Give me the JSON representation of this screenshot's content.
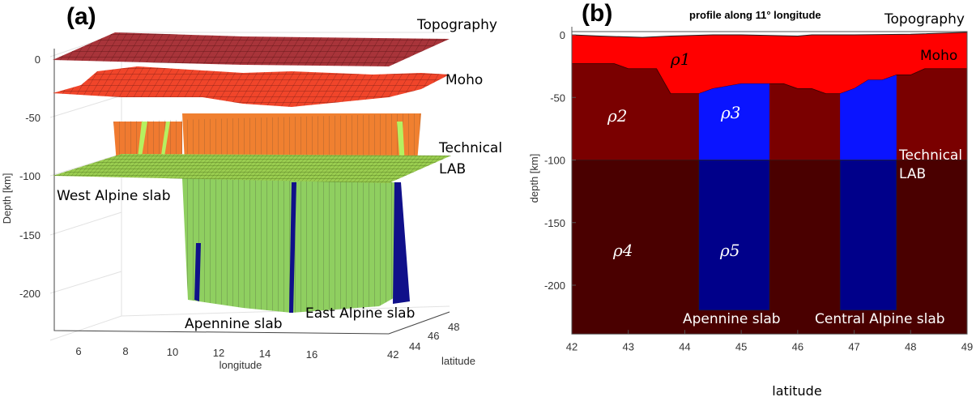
{
  "panel_a": {
    "label": "(a)",
    "layer_labels": {
      "topography": "Topography",
      "moho": "Moho",
      "lab_line1": "Technical",
      "lab_line2": "LAB",
      "west_slab": "West Alpine slab",
      "apennine_slab": "Apennine slab",
      "east_slab": "East Alpine slab"
    }
  },
  "panel_b": {
    "label": "(b)",
    "title": "profile along 11° longitude",
    "layer_labels": {
      "topography": "Topography",
      "moho": "Moho",
      "lab_line1": "Technical",
      "lab_line2": "LAB",
      "apennine_slab": "Apennine slab",
      "central_slab": "Central Alpine slab"
    },
    "density_labels": [
      "ρ1",
      "ρ2",
      "ρ3",
      "ρ4",
      "ρ5"
    ]
  },
  "chart_data": [
    {
      "type": "3d-surface",
      "zlabel": "Depth [km]",
      "xlabel": "longitude",
      "ylabel": "latitude",
      "z_ticks": [
        "0",
        "-50",
        "-100",
        "-150",
        "-200"
      ],
      "x_ticks": [
        "6",
        "8",
        "10",
        "12",
        "14",
        "16"
      ],
      "y_ticks": [
        "42",
        "44",
        "46",
        "48"
      ],
      "surfaces": [
        "Topography",
        "Moho",
        "Technical LAB"
      ],
      "colors": {
        "topography": "#a8343a",
        "moho": "#f04020",
        "crust_walls": "#f08030",
        "lab": "#9acd50",
        "slab_walls": "#8fcf60",
        "slab_blue": "#10108a"
      }
    },
    {
      "type": "area",
      "title": "profile along 11° longitude",
      "xlabel": "latitude",
      "ylabel": "depth [km]",
      "xlim": [
        42,
        49
      ],
      "ylim": [
        -239,
        5
      ],
      "x_ticks": [
        "42",
        "43",
        "44",
        "45",
        "46",
        "47",
        "48",
        "49"
      ],
      "y_ticks": [
        "0",
        "-50",
        "-100",
        "-150",
        "-200"
      ],
      "topography": {
        "lat": [
          42,
          42.5,
          43.25,
          43.75,
          44.5,
          45,
          46,
          46.25,
          47,
          48,
          49
        ],
        "depth": [
          0,
          -1,
          -2,
          -1,
          0,
          0,
          -1,
          0,
          0,
          0.5,
          2
        ]
      },
      "moho": {
        "lat": [
          42,
          42.75,
          43,
          43.5,
          43.75,
          44.25,
          44.5,
          45,
          45.75,
          46,
          46.25,
          46.5,
          46.75,
          47,
          47.25,
          47.5,
          47.75,
          48,
          48.25,
          49
        ],
        "depth": [
          -23,
          -23,
          -27,
          -27,
          -47,
          -47,
          -43,
          -39,
          -39,
          -43,
          -43,
          -47,
          -47,
          -43,
          -36,
          -36,
          -32,
          -32,
          -27,
          -27
        ]
      },
      "lab_depth": -100,
      "slabs": [
        {
          "name": "Apennine slab",
          "lat_range": [
            44.25,
            45.5
          ],
          "bottom": -220
        },
        {
          "name": "Central Alpine slab",
          "lat_range": [
            46.75,
            47.75
          ],
          "bottom": -220
        }
      ],
      "colors": {
        "crust": "#ff0000",
        "lith_mantle": "#7a0000",
        "asth_mantle": "#4a0000",
        "slab_upper": "#0a14ff",
        "slab_lower": "#00008a"
      }
    }
  ]
}
